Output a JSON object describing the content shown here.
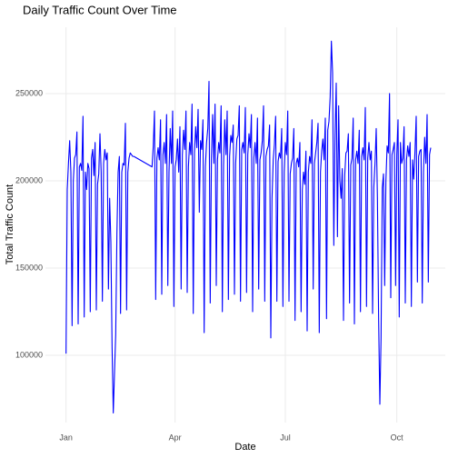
{
  "chart_data": {
    "type": "line",
    "title": "Daily Traffic Count Over Time",
    "x_label": "Date",
    "y_label": "Total Traffic Count",
    "x": [
      1,
      2,
      3,
      4,
      5,
      6,
      7,
      8,
      9,
      10,
      11,
      12,
      13,
      14,
      15,
      16,
      17,
      18,
      19,
      20,
      21,
      22,
      23,
      24,
      25,
      26,
      27,
      28,
      29,
      30,
      31,
      32,
      33,
      34,
      35,
      36,
      37,
      38,
      39,
      40,
      41,
      42,
      43,
      44,
      45,
      46,
      47,
      48,
      49,
      50,
      51,
      52,
      53,
      54,
      55,
      56,
      57,
      72,
      73,
      74,
      75,
      76,
      77,
      78,
      79,
      80,
      81,
      82,
      83,
      84,
      85,
      86,
      87,
      88,
      89,
      90,
      91,
      92,
      93,
      94,
      95,
      96,
      97,
      98,
      99,
      100,
      101,
      102,
      103,
      104,
      105,
      106,
      107,
      108,
      109,
      110,
      111,
      112,
      113,
      114,
      115,
      116,
      117,
      118,
      119,
      120,
      121,
      122,
      123,
      124,
      125,
      126,
      127,
      128,
      129,
      130,
      131,
      132,
      133,
      134,
      135,
      136,
      137,
      138,
      139,
      140,
      141,
      142,
      143,
      144,
      145,
      146,
      147,
      148,
      149,
      150,
      151,
      152,
      153,
      154,
      155,
      156,
      157,
      158,
      159,
      160,
      161,
      162,
      163,
      164,
      165,
      166,
      167,
      168,
      169,
      170,
      171,
      172,
      173,
      174,
      175,
      176,
      177,
      178,
      179,
      180,
      181,
      182,
      183,
      184,
      185,
      186,
      187,
      188,
      189,
      190,
      191,
      192,
      193,
      194,
      195,
      196,
      197,
      198,
      199,
      200,
      201,
      202,
      203,
      204,
      205,
      206,
      207,
      208,
      209,
      210,
      211,
      212,
      213,
      214,
      215,
      216,
      217,
      218,
      219,
      220,
      221,
      222,
      223,
      224,
      225,
      226,
      227,
      228,
      229,
      230,
      231,
      232,
      233,
      234,
      235,
      236,
      237,
      238,
      239,
      240,
      241,
      242,
      243,
      244,
      245,
      246,
      247,
      248,
      249,
      250,
      251,
      252,
      253,
      254,
      255,
      256,
      257,
      258,
      259,
      260,
      261,
      262,
      263,
      264,
      265,
      266,
      267,
      268,
      269,
      270,
      271,
      272,
      273,
      274,
      275,
      276,
      277,
      278,
      279,
      280,
      281,
      282,
      283,
      284,
      285,
      286,
      287,
      288,
      289,
      290,
      291,
      292,
      293,
      294,
      295,
      296,
      297,
      298,
      299,
      300,
      301,
      302
    ],
    "series": [
      {
        "name": "Total Traffic Count",
        "color": "#0000ff",
        "values": [
          101000,
          195000,
          210000,
          223000,
          205000,
          117000,
          200000,
          213000,
          215000,
          228000,
          118000,
          208000,
          210000,
          206000,
          237000,
          122000,
          205000,
          195000,
          210000,
          207000,
          125000,
          213000,
          218000,
          203000,
          222000,
          126000,
          198000,
          204000,
          227000,
          205000,
          131000,
          210000,
          218000,
          212000,
          216000,
          138000,
          190000,
          165000,
          105000,
          67000,
          90000,
          112000,
          170000,
          205000,
          214000,
          124000,
          205000,
          210000,
          209000,
          233000,
          126000,
          205000,
          213000,
          216000,
          215000,
          214000,
          214000,
          208000,
          220000,
          240000,
          132000,
          213000,
          219000,
          212000,
          235000,
          135000,
          215000,
          222000,
          210000,
          238000,
          140000,
          205000,
          230000,
          210000,
          240000,
          128000,
          208000,
          212000,
          224000,
          205000,
          231000,
          138000,
          215000,
          229000,
          218000,
          240000,
          136000,
          208000,
          222000,
          215000,
          244000,
          124000,
          216000,
          231000,
          219000,
          241000,
          182000,
          223000,
          218000,
          235000,
          113000,
          208000,
          222000,
          230000,
          257000,
          130000,
          213000,
          238000,
          210000,
          244000,
          140000,
          212000,
          222000,
          216000,
          243000,
          125000,
          209000,
          235000,
          215000,
          240000,
          132000,
          214000,
          226000,
          222000,
          232000,
          135000,
          210000,
          224000,
          226000,
          243000,
          131000,
          218000,
          222000,
          216000,
          242000,
          136000,
          215000,
          227000,
          219000,
          238000,
          125000,
          213000,
          222000,
          210000,
          236000,
          138000,
          212000,
          216000,
          223000,
          243000,
          131000,
          214000,
          218000,
          220000,
          232000,
          110000,
          190000,
          212000,
          221000,
          237000,
          131000,
          211000,
          216000,
          213000,
          230000,
          128000,
          205000,
          222000,
          215000,
          240000,
          131000,
          204000,
          210000,
          213000,
          230000,
          120000,
          210000,
          213000,
          208000,
          222000,
          125000,
          195000,
          205000,
          198000,
          217000,
          114000,
          205000,
          214000,
          210000,
          235000,
          138000,
          210000,
          216000,
          222000,
          233000,
          113000,
          205000,
          217000,
          224000,
          212000,
          236000,
          121000,
          229000,
          234000,
          248000,
          280000,
          262000,
          163000,
          226000,
          256000,
          168000,
          243000,
          200000,
          190000,
          207000,
          120000,
          203000,
          216000,
          217000,
          227000,
          130000,
          209000,
          213000,
          236000,
          118000,
          212000,
          217000,
          210000,
          229000,
          125000,
          214000,
          219000,
          212000,
          242000,
          128000,
          213000,
          222000,
          212000,
          217000,
          124000,
          196000,
          210000,
          230000,
          190000,
          120000,
          72000,
          110000,
          196000,
          204000,
          140000,
          200000,
          220000,
          216000,
          250000,
          133000,
          215000,
          218000,
          222000,
          140000,
          215000,
          235000,
          122000,
          222000,
          210000,
          213000,
          231000,
          130000,
          212000,
          220000,
          214000,
          222000,
          128000,
          212000,
          201000,
          217000,
          237000,
          142000,
          214000,
          217000,
          218000,
          130000,
          205000,
          225000,
          210000,
          238000,
          142000,
          215000,
          219000
        ]
      }
    ],
    "xlim": [
      -16,
      314
    ],
    "xticks": [
      {
        "value": 1,
        "label": "Jan"
      },
      {
        "value": 91,
        "label": "Apr"
      },
      {
        "value": 182,
        "label": "Jul"
      },
      {
        "value": 274,
        "label": "Oct"
      }
    ],
    "ylim": [
      61500,
      288000
    ],
    "yticks": [
      100000,
      150000,
      200000,
      250000
    ],
    "grid": true
  }
}
